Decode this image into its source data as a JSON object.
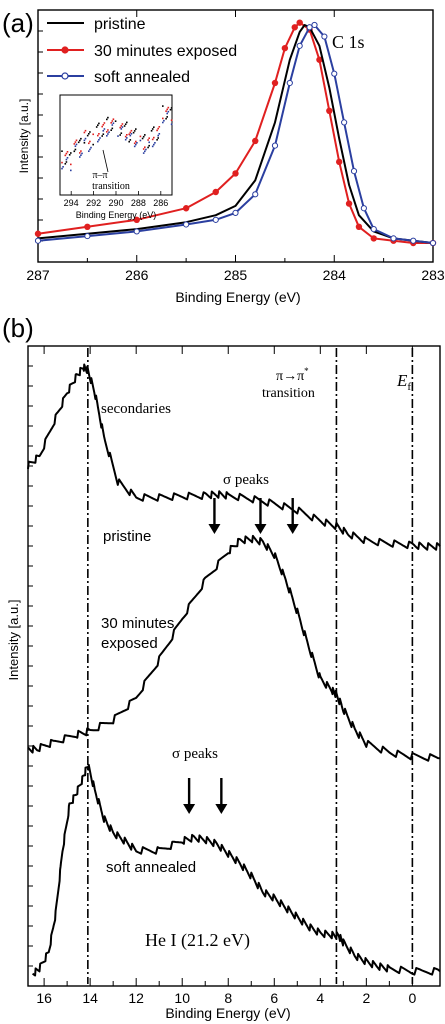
{
  "chart_data": [
    {
      "panel_label": "(a)",
      "type": "line",
      "xlabel": "Binding Energy (eV)",
      "ylabel": "Intensity [a.u.]",
      "xlim": [
        287,
        283
      ],
      "x_reversed": true,
      "ylim": [
        0,
        1
      ],
      "x_ticks": [
        287,
        286,
        285,
        284,
        283
      ],
      "legend_placement": "top-left",
      "annotation": "C 1s",
      "series": [
        {
          "name": "pristine",
          "color": "#000000",
          "marker": "none",
          "x": [
            287,
            286.5,
            286,
            285.5,
            285.2,
            285,
            284.8,
            284.6,
            284.45,
            284.35,
            284.3,
            284.25,
            284.15,
            284.05,
            283.95,
            283.85,
            283.75,
            283.6,
            283.4,
            283.2,
            283
          ],
          "y": [
            0.05,
            0.07,
            0.09,
            0.12,
            0.15,
            0.19,
            0.3,
            0.55,
            0.82,
            0.94,
            0.97,
            0.96,
            0.88,
            0.7,
            0.48,
            0.28,
            0.15,
            0.08,
            0.05,
            0.04,
            0.03
          ]
        },
        {
          "name": "30 minutes exposed",
          "color": "#e02020",
          "marker": "circle",
          "x": [
            287,
            286.5,
            286,
            285.5,
            285.2,
            285,
            284.8,
            284.6,
            284.5,
            284.4,
            284.35,
            284.25,
            284.15,
            284.05,
            283.95,
            283.85,
            283.75,
            283.6,
            283.4,
            283.2,
            283
          ],
          "y": [
            0.07,
            0.1,
            0.13,
            0.18,
            0.25,
            0.33,
            0.47,
            0.72,
            0.87,
            0.96,
            0.98,
            0.95,
            0.82,
            0.6,
            0.38,
            0.2,
            0.1,
            0.05,
            0.04,
            0.03,
            0.03
          ]
        },
        {
          "name": "soft annealed",
          "color": "#2b3fa0",
          "marker": "open-circle",
          "x": [
            287,
            286.5,
            286,
            285.5,
            285.2,
            285,
            284.8,
            284.6,
            284.45,
            284.35,
            284.25,
            284.2,
            284.1,
            284,
            283.9,
            283.8,
            283.7,
            283.6,
            283.4,
            283.2,
            283
          ],
          "y": [
            0.04,
            0.06,
            0.08,
            0.11,
            0.13,
            0.16,
            0.24,
            0.45,
            0.72,
            0.88,
            0.96,
            0.97,
            0.92,
            0.76,
            0.55,
            0.34,
            0.18,
            0.09,
            0.05,
            0.04,
            0.03
          ]
        }
      ],
      "inset": {
        "type": "scatter",
        "xlabel": "Binding Energy (eV)",
        "xlim": [
          295,
          285
        ],
        "x_ticks": [
          294,
          292,
          290,
          288,
          286
        ],
        "x_tick_labels": [
          "294",
          "292",
          "290",
          "288",
          "286"
        ],
        "annotation": "π→π transition",
        "series": [
          {
            "name": "",
            "color": "#000000",
            "x": [
              294.5,
              293.5,
              292.5,
              291.5,
              290.5,
              289.5,
              288.5,
              287.5,
              286.5,
              285.5
            ],
            "y": [
              0.35,
              0.48,
              0.55,
              0.64,
              0.7,
              0.65,
              0.58,
              0.52,
              0.6,
              0.82
            ]
          },
          {
            "name": "",
            "color": "#e02020",
            "x": [
              294.5,
              293.5,
              292.5,
              291.5,
              290.5,
              289.5,
              288.5,
              287.5,
              286.5,
              285.5
            ],
            "y": [
              0.4,
              0.52,
              0.62,
              0.7,
              0.74,
              0.69,
              0.62,
              0.56,
              0.66,
              0.86
            ]
          },
          {
            "name": "",
            "color": "#2b3fa0",
            "x": [
              294.5,
              293.5,
              292.5,
              291.5,
              290.5,
              289.5,
              288.5,
              287.5,
              286.5,
              285.5
            ],
            "y": [
              0.3,
              0.44,
              0.5,
              0.6,
              0.66,
              0.62,
              0.55,
              0.48,
              0.55,
              0.78
            ]
          }
        ]
      }
    },
    {
      "panel_label": "(b)",
      "type": "line",
      "xlabel": "Binding Energy (eV)",
      "ylabel": "Intensity [a.u.]",
      "xlim": [
        16.7,
        -1.2
      ],
      "x_reversed": true,
      "ylim": [
        0,
        1
      ],
      "x_ticks": [
        16,
        14,
        12,
        10,
        8,
        6,
        4,
        2,
        0
      ],
      "vlines": [
        14.1,
        3.3,
        0
      ],
      "annotations": {
        "secondaries": "secondaries",
        "pipi": "π→π",
        "pipi_sup": "*",
        "pipi_2": "transition",
        "ef": "E",
        "ef_sub": "f",
        "sigma_1": "σ peaks",
        "sigma_2": "σ peaks",
        "he": "He I  (21.2 eV)"
      },
      "arrows_eV": [
        [
          8.6,
          6.6,
          5.2
        ],
        [
          9.7,
          8.3
        ]
      ],
      "series": [
        {
          "name": "pristine",
          "color": "#000000",
          "x": [
            16.7,
            16.2,
            15.5,
            15,
            14.6,
            14.3,
            14.1,
            13.8,
            13.4,
            12.8,
            12,
            11,
            10,
            9,
            8.5,
            8,
            7,
            6,
            5,
            4,
            3.3,
            2.8,
            2,
            1,
            0,
            -0.6,
            -1.2
          ],
          "y": [
            0.815,
            0.83,
            0.89,
            0.93,
            0.955,
            0.97,
            0.965,
            0.93,
            0.86,
            0.79,
            0.765,
            0.765,
            0.767,
            0.768,
            0.77,
            0.768,
            0.763,
            0.755,
            0.745,
            0.728,
            0.72,
            0.708,
            0.697,
            0.693,
            0.69,
            0.688,
            0.688
          ]
        },
        {
          "name": "30 minutes exposed",
          "color": "#000000",
          "x": [
            16.7,
            16.3,
            15.6,
            14.6,
            14,
            13,
            12,
            11,
            10,
            9,
            8,
            7.5,
            7,
            6.5,
            6,
            5.5,
            5,
            4.5,
            4,
            3.5,
            3.3,
            3,
            2.5,
            2,
            1,
            0,
            -1.2
          ],
          "y": [
            0.368,
            0.37,
            0.38,
            0.392,
            0.398,
            0.415,
            0.45,
            0.51,
            0.575,
            0.635,
            0.68,
            0.697,
            0.7,
            0.695,
            0.675,
            0.635,
            0.585,
            0.53,
            0.48,
            0.462,
            0.455,
            0.432,
            0.4,
            0.378,
            0.364,
            0.358,
            0.355
          ]
        },
        {
          "name": "soft annealed",
          "color": "#000000",
          "x": [
            16.5,
            16.2,
            15.8,
            15.5,
            15.2,
            14.9,
            14.6,
            14.3,
            14.1,
            13.8,
            13.4,
            13,
            12.5,
            12,
            11,
            10,
            9.5,
            9,
            8.5,
            8,
            7.5,
            7,
            6.5,
            6,
            5.5,
            5,
            4.5,
            4,
            3.5,
            3.2,
            3,
            2.5,
            2,
            1.5,
            1,
            0,
            -1.2
          ],
          "y": [
            0.015,
            0.025,
            0.05,
            0.11,
            0.21,
            0.28,
            0.3,
            0.325,
            0.345,
            0.305,
            0.26,
            0.238,
            0.225,
            0.21,
            0.21,
            0.225,
            0.23,
            0.227,
            0.22,
            0.205,
            0.19,
            0.17,
            0.145,
            0.135,
            0.12,
            0.105,
            0.09,
            0.08,
            0.077,
            0.076,
            0.065,
            0.045,
            0.035,
            0.028,
            0.024,
            0.02,
            0.02
          ]
        }
      ]
    }
  ]
}
